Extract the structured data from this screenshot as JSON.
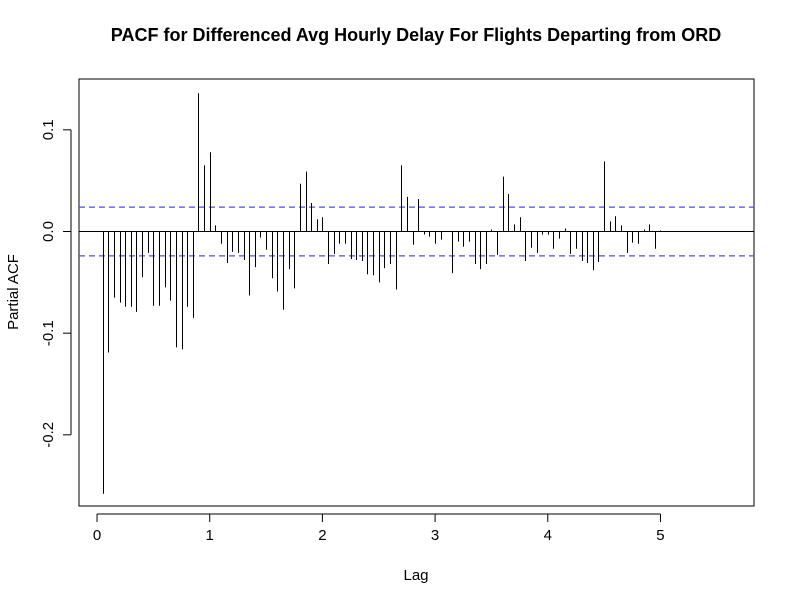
{
  "chart_data": {
    "type": "bar",
    "title": "PACF for Differenced Avg Hourly Delay For Flights Departing from ORD",
    "xlabel": "Lag",
    "ylabel": "Partial ACF",
    "xlim": [
      -0.16,
      5.83
    ],
    "ylim": [
      -0.27,
      0.15
    ],
    "x_ticks": [
      {
        "value": 0,
        "label": "0"
      },
      {
        "value": 1,
        "label": "1"
      },
      {
        "value": 2,
        "label": "2"
      },
      {
        "value": 3,
        "label": "3"
      },
      {
        "value": 4,
        "label": "4"
      },
      {
        "value": 5,
        "label": "5"
      }
    ],
    "y_ticks": [
      {
        "value": -0.2,
        "label": "-0.2"
      },
      {
        "value": -0.1,
        "label": "-0.1"
      },
      {
        "value": 0.0,
        "label": "0.0"
      },
      {
        "value": 0.1,
        "label": "0.1"
      }
    ],
    "confidence_bounds": [
      0.024,
      -0.024
    ],
    "ci_color": "#4f4fe0",
    "bar_color": "#000000",
    "lag_step": 0.05,
    "lag_start": 0.05,
    "values": [
      -0.258,
      -0.119,
      -0.065,
      -0.07,
      -0.074,
      -0.074,
      -0.079,
      -0.045,
      -0.021,
      -0.073,
      -0.073,
      -0.055,
      -0.068,
      -0.114,
      -0.116,
      -0.074,
      -0.085,
      0.136,
      0.065,
      0.078,
      0.006,
      -0.012,
      -0.031,
      -0.02,
      -0.021,
      -0.028,
      -0.063,
      -0.035,
      -0.006,
      -0.018,
      -0.046,
      -0.059,
      -0.077,
      -0.037,
      -0.056,
      0.047,
      0.059,
      0.028,
      0.012,
      0.014,
      -0.032,
      -0.022,
      -0.012,
      -0.012,
      -0.027,
      -0.028,
      -0.029,
      -0.042,
      -0.043,
      -0.05,
      -0.036,
      -0.032,
      -0.057,
      0.065,
      0.034,
      -0.013,
      0.032,
      -0.003,
      -0.005,
      -0.012,
      -0.008,
      0.0,
      -0.041,
      -0.01,
      -0.015,
      -0.01,
      -0.032,
      -0.037,
      -0.032,
      0.002,
      -0.023,
      0.054,
      0.037,
      0.007,
      0.014,
      -0.029,
      -0.016,
      -0.021,
      -0.003,
      -0.003,
      -0.017,
      -0.007,
      0.003,
      -0.022,
      -0.017,
      -0.029,
      -0.031,
      -0.038,
      -0.03,
      0.069,
      0.01,
      0.015,
      0.006,
      -0.021,
      -0.011,
      -0.012,
      0.002,
      0.007,
      -0.017,
      0.001
    ]
  }
}
